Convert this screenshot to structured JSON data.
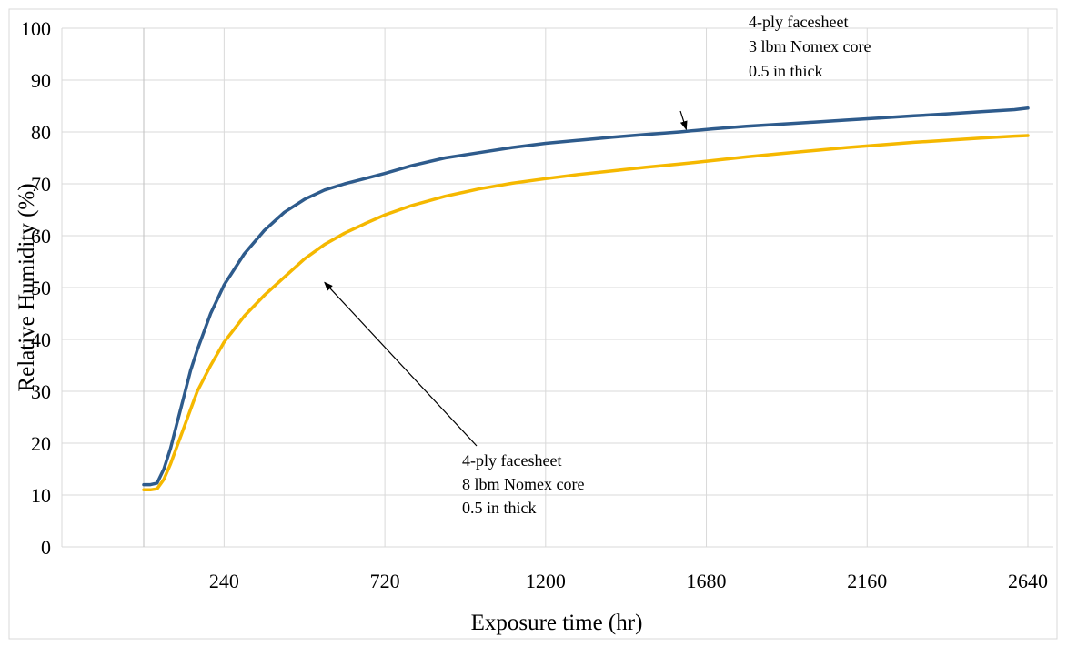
{
  "chart_data": {
    "type": "line",
    "xlabel": "Exposure time (hr)",
    "ylabel": "Relative Humidity (%)",
    "xlim": [
      0,
      2640
    ],
    "ylim": [
      0,
      100
    ],
    "x_ticks": [
      240,
      720,
      1200,
      1680,
      2160,
      2640
    ],
    "y_ticks": [
      0,
      10,
      20,
      30,
      40,
      50,
      60,
      70,
      80,
      90,
      100
    ],
    "grid": true,
    "colors": {
      "series_3lbm": "#2e5b8c",
      "series_8lbm": "#f5b800",
      "grid": "#d9d9d9",
      "arrow": "#000000"
    },
    "series": [
      {
        "key": "3lbm",
        "x": [
          0,
          20,
          40,
          60,
          80,
          100,
          120,
          140,
          160,
          200,
          240,
          300,
          360,
          420,
          480,
          540,
          600,
          660,
          720,
          800,
          900,
          1000,
          1100,
          1200,
          1300,
          1400,
          1500,
          1600,
          1700,
          1800,
          1900,
          2000,
          2100,
          2200,
          2300,
          2400,
          2500,
          2600,
          2640
        ],
        "y": [
          12,
          12,
          12.3,
          15,
          19,
          24,
          29,
          34,
          38,
          45,
          50.5,
          56.5,
          61,
          64.5,
          67,
          68.8,
          70,
          71,
          72,
          73.5,
          75,
          76,
          77,
          77.8,
          78.4,
          79,
          79.5,
          80,
          80.6,
          81.1,
          81.5,
          81.9,
          82.3,
          82.7,
          83.1,
          83.5,
          83.9,
          84.3,
          84.6
        ]
      },
      {
        "key": "8lbm",
        "x": [
          0,
          20,
          40,
          60,
          80,
          100,
          120,
          140,
          160,
          200,
          240,
          300,
          360,
          420,
          480,
          540,
          600,
          660,
          720,
          800,
          900,
          1000,
          1100,
          1200,
          1300,
          1400,
          1500,
          1600,
          1700,
          1800,
          1900,
          2000,
          2100,
          2200,
          2300,
          2400,
          2500,
          2600,
          2640
        ],
        "y": [
          11,
          11,
          11.2,
          13,
          16,
          19.5,
          23,
          26.5,
          30,
          35,
          39.5,
          44.5,
          48.5,
          52,
          55.5,
          58.3,
          60.5,
          62.3,
          64,
          65.8,
          67.6,
          69,
          70.1,
          71,
          71.8,
          72.5,
          73.2,
          73.8,
          74.5,
          75.2,
          75.8,
          76.4,
          77,
          77.5,
          78,
          78.4,
          78.8,
          79.2,
          79.3
        ]
      }
    ],
    "annotations": [
      {
        "key": "anno_3lbm",
        "lines": [
          "4-ply facesheet",
          "3 lbm Nomex core",
          "0.5 in thick"
        ],
        "points_to": {
          "x": 1620,
          "y": 80.5
        }
      },
      {
        "key": "anno_8lbm",
        "lines": [
          "4-ply facesheet",
          "8 lbm Nomex core",
          "0.5 in thick"
        ],
        "points_to": {
          "x": 540,
          "y": 51
        }
      }
    ]
  }
}
